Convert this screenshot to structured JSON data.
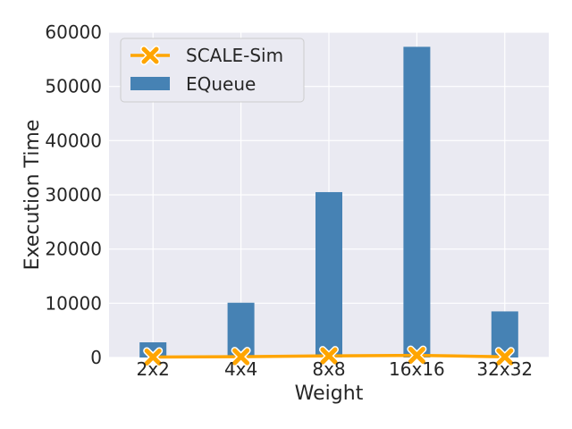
{
  "chart_data": {
    "type": "bar",
    "title": "",
    "xlabel": "Weight",
    "ylabel": "Execution Time",
    "categories": [
      "2x2",
      "4x4",
      "8x8",
      "16x16",
      "32x32"
    ],
    "ylim": [
      0,
      60000
    ],
    "yticks": [
      0,
      10000,
      20000,
      30000,
      40000,
      50000,
      60000
    ],
    "ytick_labels": [
      "0",
      "10000",
      "20000",
      "30000",
      "40000",
      "50000",
      "60000"
    ],
    "grid": true,
    "legend_position": "top-left",
    "series": [
      {
        "name": "SCALE-Sim",
        "kind": "line",
        "marker": "x",
        "color": "#FFA500",
        "values": [
          80,
          150,
          300,
          400,
          120
        ]
      },
      {
        "name": "EQueue",
        "kind": "bar",
        "color": "#4682B4",
        "values": [
          2800,
          10100,
          30500,
          57300,
          8500
        ]
      }
    ],
    "colors": {
      "background": "#EAEAF2",
      "grid": "#FFFFFF"
    }
  }
}
